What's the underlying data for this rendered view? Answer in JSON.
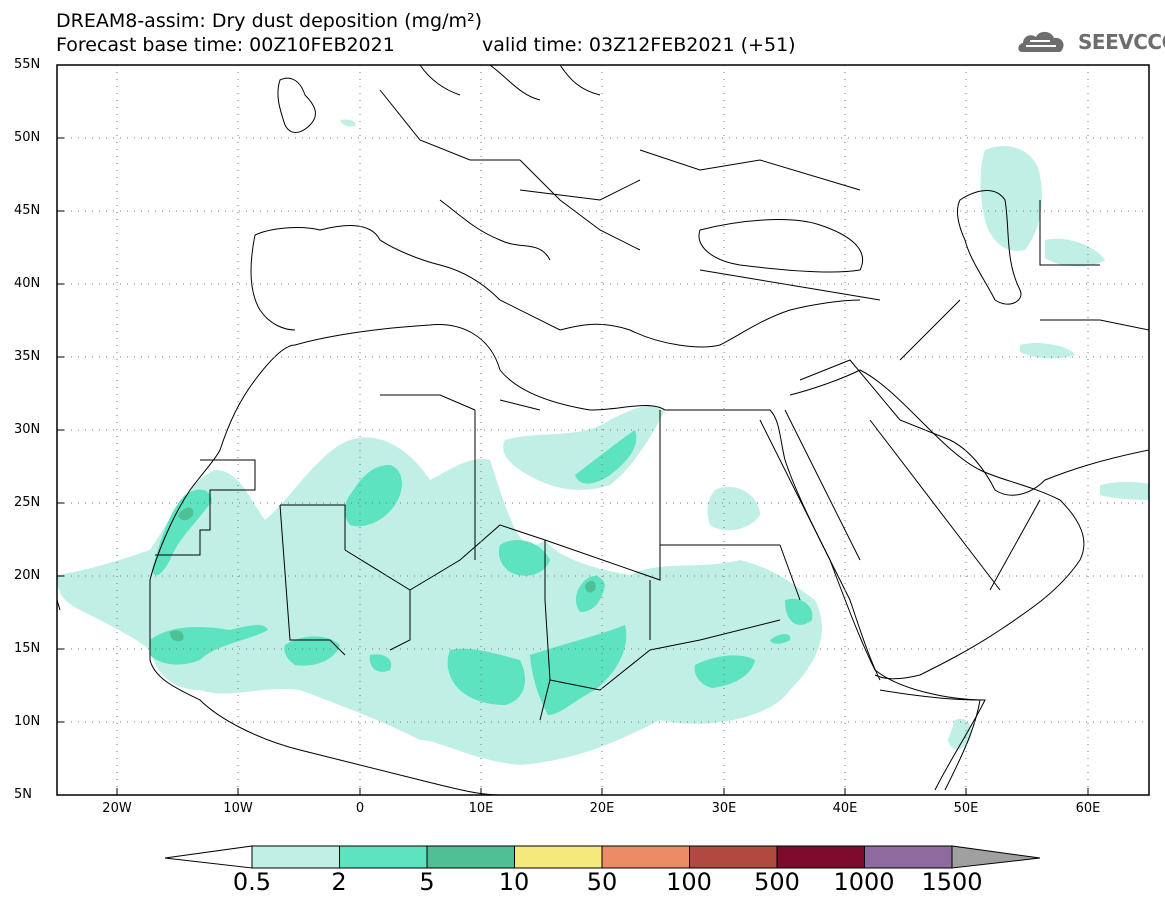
{
  "title": {
    "line1": "DREAM8-assim: Dry dust deposition (mg/m²)",
    "line2_left": "Forecast base time: 00Z10FEB2021",
    "line2_right": "valid time: 03Z12FEB2021 (+51)"
  },
  "logo": {
    "text": "SEEVCCC",
    "icon": "cloud-icon",
    "color": "#6d6d6d"
  },
  "axes": {
    "lat_labels": [
      "55N",
      "50N",
      "45N",
      "40N",
      "35N",
      "30N",
      "25N",
      "20N",
      "15N",
      "10N",
      "5N"
    ],
    "lon_labels": [
      "20W",
      "10W",
      "0",
      "10E",
      "20E",
      "30E",
      "40E",
      "50E",
      "60E"
    ],
    "lat_range": [
      5,
      55
    ],
    "lon_range": [
      -25,
      65
    ],
    "grid": "dotted"
  },
  "colorbar": {
    "labels": [
      "0.5",
      "2",
      "5",
      "10",
      "50",
      "100",
      "500",
      "1000",
      "1500"
    ],
    "colors": [
      "#c0efe6",
      "#5de3bf",
      "#4fc095",
      "#f4e97a",
      "#ec8c66",
      "#b04a3e",
      "#7f0b2c",
      "#8e6a9e"
    ],
    "under_color": "#ffffff",
    "over_color": "#a0a0a0"
  }
}
